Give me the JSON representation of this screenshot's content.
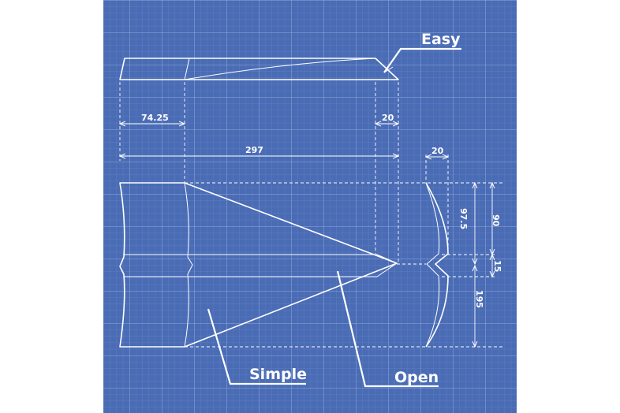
{
  "labels": {
    "easy": "Easy",
    "simple": "Simple",
    "open": "Open"
  },
  "dimensions": {
    "top_left_width": "74.25",
    "top_right_width": "20",
    "total_width": "297",
    "side_width": "20",
    "upper_height": "97.5",
    "upper_height_outer": "90",
    "middle_height": "15",
    "lower_height": "195"
  },
  "colors": {
    "background": "#4a6cb5",
    "ink": "#ffffff"
  }
}
